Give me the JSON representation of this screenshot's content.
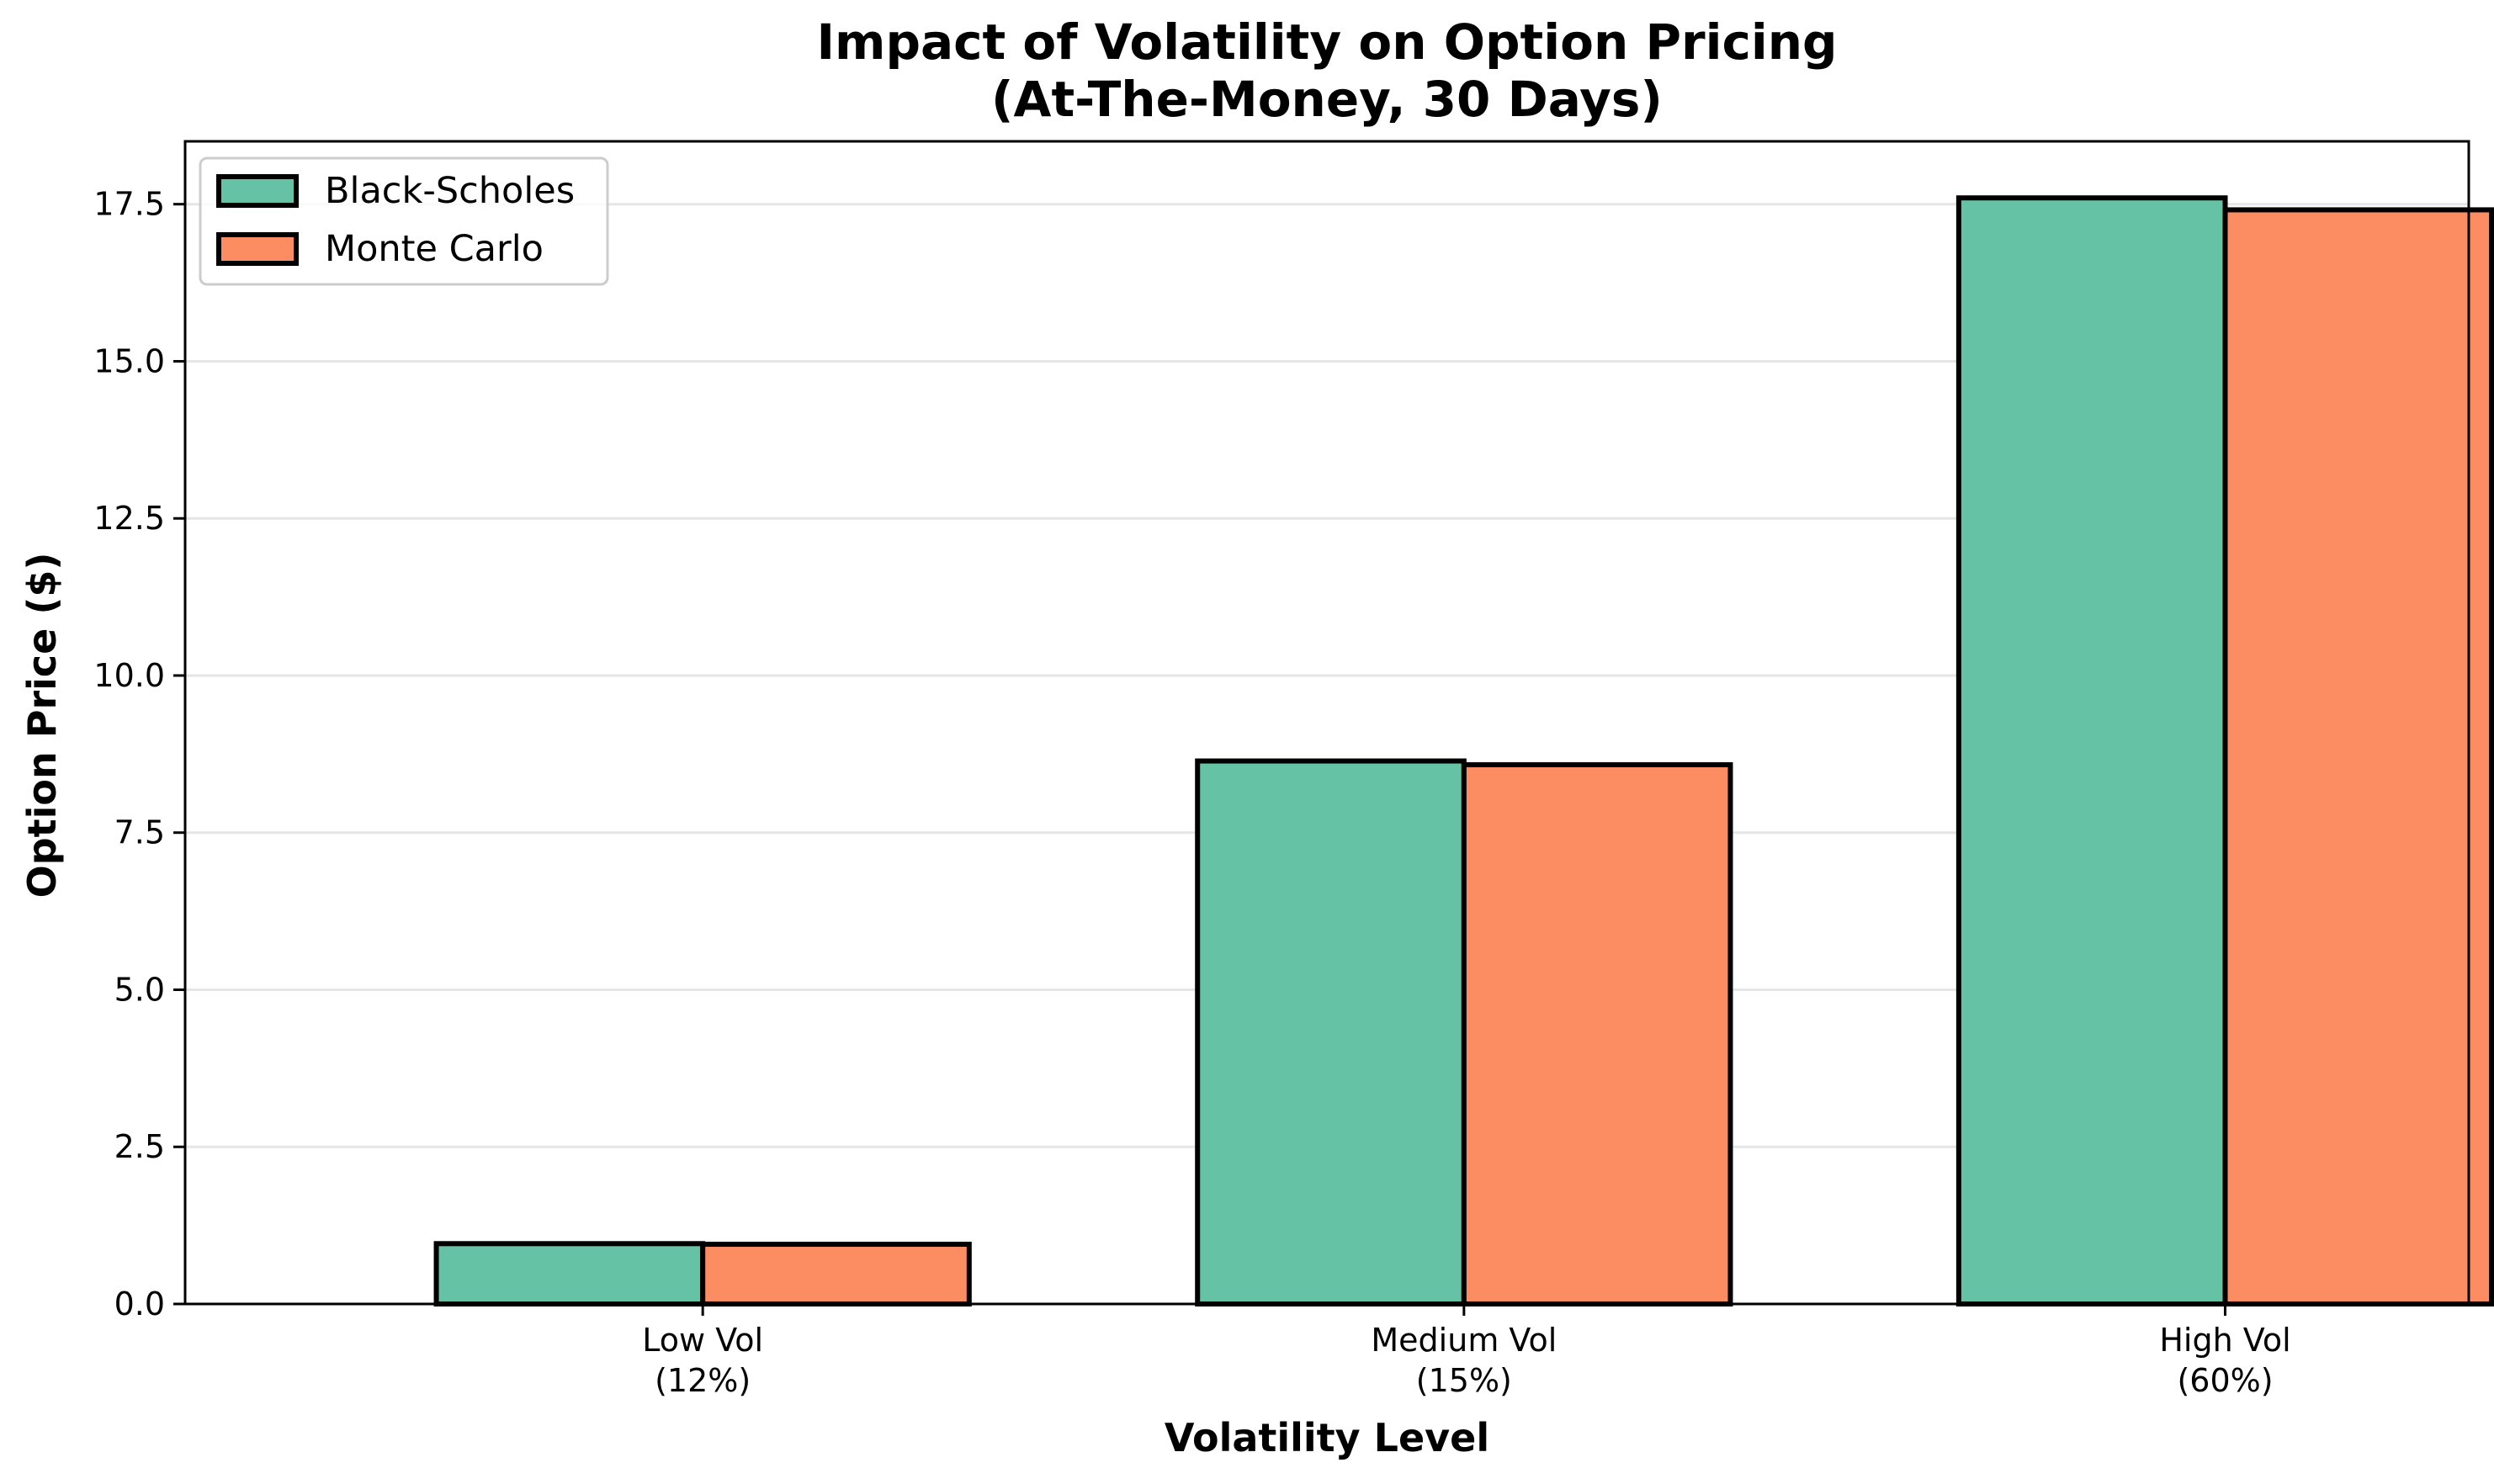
{
  "chart_data": {
    "type": "bar",
    "title": "Impact of Volatility on Option Pricing",
    "subtitle": "(At-The-Money, 30 Days)",
    "xlabel": "Volatility Level",
    "ylabel": "Option Price ($)",
    "categories": [
      [
        "Low Vol",
        "(12%)"
      ],
      [
        "Medium Vol",
        "(15%)"
      ],
      [
        "High Vol",
        "(60%)"
      ]
    ],
    "series": [
      {
        "name": "Black-Scholes",
        "color": "#66c2a5",
        "values": [
          0.96,
          8.64,
          17.6
        ]
      },
      {
        "name": "Monte Carlo",
        "color": "#fc8d62",
        "values": [
          0.95,
          8.58,
          17.41
        ]
      }
    ],
    "ylim": [
      0,
      18.5
    ],
    "yticks": [
      "0.0",
      "2.5",
      "5.0",
      "7.5",
      "10.0",
      "12.5",
      "15.0",
      "17.5"
    ],
    "grid": "y",
    "legend": "top-left",
    "edge_color": "#000000"
  }
}
